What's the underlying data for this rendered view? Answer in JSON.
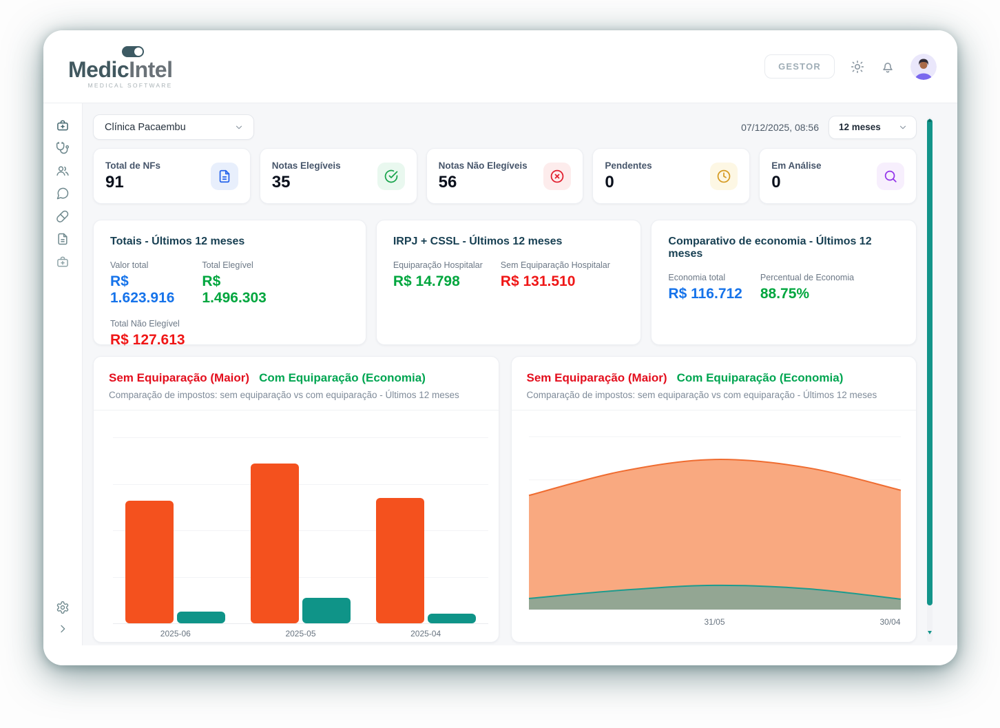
{
  "colors": {
    "accent_teal": "#13948a",
    "bar_orange": "#f4511e",
    "bar_teal": "#0f9488",
    "legend_red": "#e30e1d",
    "legend_green": "#00a551",
    "value_blue": "#1673ea",
    "value_green": "#00a63e",
    "value_red": "#ef1616",
    "title_navy": "#173f52"
  },
  "header": {
    "logo": {
      "text_primary": "Medic",
      "text_secondary": "Intel",
      "tagline": "MEDICAL SOFTWARE"
    },
    "role_button_label": "GESTOR",
    "icons": [
      "theme-sun",
      "notifications-bell",
      "user-avatar"
    ]
  },
  "sidebar": {
    "items": [
      {
        "icon": "medical-bag"
      },
      {
        "icon": "stethoscope"
      },
      {
        "icon": "users"
      },
      {
        "icon": "chat-bubble"
      },
      {
        "icon": "pill"
      },
      {
        "icon": "document"
      },
      {
        "icon": "medical-bag-alt"
      }
    ],
    "footer": [
      {
        "icon": "settings-gear"
      },
      {
        "icon": "collapse-chevron-right"
      }
    ]
  },
  "controls": {
    "clinic_selector_value": "Clínica Pacaembu",
    "datetime": "07/12/2025, 08:56",
    "period_selector_value": "12 meses"
  },
  "stats": [
    {
      "label": "Total de NFs",
      "value": "91",
      "icon": "document-icon",
      "icon_color": "#2563eb",
      "icon_bg": "#e8effc"
    },
    {
      "label": "Notas Elegíveis",
      "value": "35",
      "icon": "check-circle-icon",
      "icon_color": "#16a34a",
      "icon_bg": "#e9f8ef"
    },
    {
      "label": "Notas Não Elegíveis",
      "value": "56",
      "icon": "x-circle-icon",
      "icon_color": "#e11d2d",
      "icon_bg": "#fdecec"
    },
    {
      "label": "Pendentes",
      "value": "0",
      "icon": "clock-icon",
      "icon_color": "#d59a21",
      "icon_bg": "#fdf7e4"
    },
    {
      "label": "Em Análise",
      "value": "0",
      "icon": "search-icon",
      "icon_color": "#9333ea",
      "icon_bg": "#f7effd"
    }
  ],
  "summary_cards": [
    {
      "title": "Totais - Últimos 12 meses",
      "metrics": [
        {
          "label": "Valor total",
          "value": "R$ 1.623.916",
          "color": "blue"
        },
        {
          "label": "Total Elegível",
          "value": "R$ 1.496.303",
          "color": "green"
        },
        {
          "label": "Total Não Elegível",
          "value": "R$ 127.613",
          "color": "red"
        }
      ]
    },
    {
      "title": "IRPJ + CSSL - Últimos 12 meses",
      "metrics": [
        {
          "label": "Equiparação Hospitalar",
          "value": "R$ 14.798",
          "color": "green"
        },
        {
          "label": "Sem Equiparação Hospitalar",
          "value": "R$ 131.510",
          "color": "red"
        }
      ]
    },
    {
      "title": "Comparativo de economia - Últimos 12 meses",
      "metrics": [
        {
          "label": "Economia total",
          "value": "R$ 116.712",
          "color": "blue"
        },
        {
          "label": "Percentual de Economia",
          "value": "88.75%",
          "color": "green"
        }
      ]
    }
  ],
  "charts_header": {
    "legend_red": "Sem Equiparação (Maior)",
    "legend_green": "Com Equiparação (Economia)",
    "subtitle": "Comparação de impostos: sem equiparação vs com equiparação - Últimos 12 meses"
  },
  "chart_data": [
    {
      "type": "bar",
      "title": "Comparação de impostos: sem equiparação vs com equiparação - Últimos 12 meses",
      "categories": [
        "2025-06",
        "2025-05",
        "2025-04"
      ],
      "series": [
        {
          "name": "Sem Equiparação (Maior)",
          "color": "#f4511e",
          "values": [
            39500,
            51500,
            40500
          ]
        },
        {
          "name": "Com Equiparação (Economia)",
          "color": "#0f9488",
          "values": [
            3800,
            8300,
            3100
          ]
        }
      ],
      "ylim": [
        0,
        60000
      ],
      "grid": true,
      "legend_position": "top"
    },
    {
      "type": "area",
      "title": "Comparação de impostos: sem equiparação vs com equiparação - Últimos 12 meses",
      "x": [
        0,
        0.25,
        0.5,
        0.75,
        1
      ],
      "x_ticks": [
        "31/05",
        "30/04"
      ],
      "x_tick_positions": [
        0.5,
        1
      ],
      "series": [
        {
          "name": "Sem Equiparação (Maior)",
          "stroke": "#ef6c30",
          "fill": "#f9a980",
          "values": [
            33000,
            40000,
            43400,
            41000,
            34500
          ]
        },
        {
          "name": "Com Equiparação (Economia)",
          "stroke": "#1d9b8e",
          "fill": "#93a693",
          "values": [
            3200,
            5600,
            7000,
            6000,
            3000
          ]
        }
      ],
      "ylim": [
        0,
        50000
      ],
      "grid": true,
      "legend_position": "top"
    }
  ]
}
